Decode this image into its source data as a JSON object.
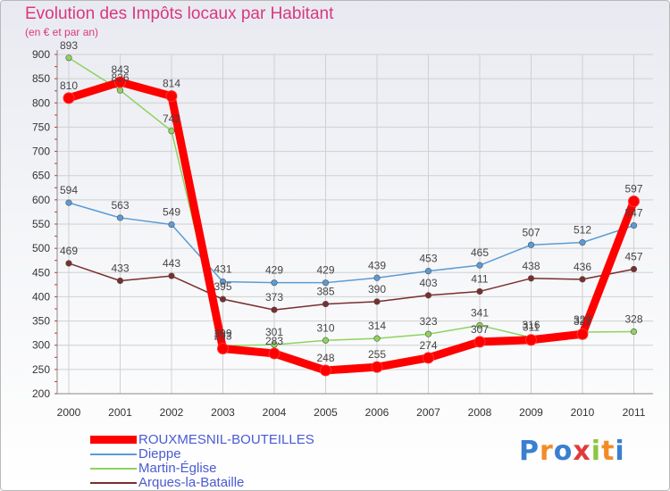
{
  "chart_data": {
    "type": "line",
    "title": "Evolution des Impôts locaux par Habitant",
    "subtitle": "(en € et par an)",
    "x": [
      "2000",
      "2001",
      "2002",
      "2003",
      "2004",
      "2005",
      "2006",
      "2007",
      "2008",
      "2009",
      "2010",
      "2011"
    ],
    "y_ticks": [
      "900",
      "850",
      "800",
      "750",
      "700",
      "650",
      "600",
      "550",
      "500",
      "450",
      "400",
      "350",
      "300",
      "250",
      "200"
    ],
    "ylim": [
      200,
      900
    ],
    "grid": true,
    "series": [
      {
        "name": "ROUXMESNIL-BOUTEILLES",
        "color": "#ff0000",
        "values": [
          810,
          843,
          814,
          293,
          283,
          248,
          255,
          274,
          307,
          311,
          323,
          597
        ],
        "labels": [
          "810",
          "843",
          "814",
          "293",
          "283",
          "248",
          "255",
          "274",
          "307",
          "311",
          "323",
          "597"
        ]
      },
      {
        "name": "Dieppe",
        "color": "#5b9bd5",
        "values": [
          594,
          563,
          549,
          431,
          429,
          429,
          439,
          453,
          465,
          507,
          512,
          547
        ],
        "labels": [
          "594",
          "563",
          "549",
          "431",
          "429",
          "429",
          "439",
          "453",
          "465",
          "507",
          "512",
          "547"
        ]
      },
      {
        "name": "Martin-Église",
        "color": "#8dd35f",
        "values": [
          893,
          826,
          742,
          299,
          301,
          310,
          314,
          323,
          341,
          316,
          327,
          328
        ],
        "labels": [
          "893",
          "826",
          "742",
          "299",
          "301",
          "310",
          "314",
          "323",
          "341",
          "316",
          "327",
          "328"
        ]
      },
      {
        "name": "Arques-la-Bataille",
        "color": "#7a2e2e",
        "values": [
          469,
          433,
          443,
          395,
          373,
          385,
          390,
          403,
          411,
          438,
          436,
          457
        ],
        "labels": [
          "469",
          "433",
          "443",
          "395",
          "373",
          "385",
          "390",
          "403",
          "411",
          "438",
          "436",
          "457"
        ]
      }
    ]
  },
  "logo": {
    "text": "Proxiti",
    "colors": [
      "#3a7fd0",
      "#f28c28",
      "#3a7fd0",
      "#e23a3a",
      "#8dc63f",
      "#f28c28",
      "#3a7fd0"
    ]
  }
}
